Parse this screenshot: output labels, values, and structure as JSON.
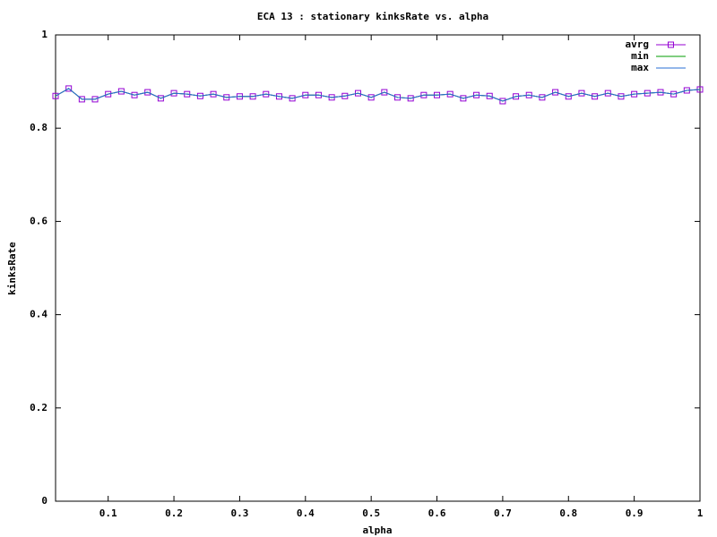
{
  "chart_data": {
    "type": "line",
    "title": "ECA 13 : stationary kinksRate vs. alpha",
    "x_label": "alpha",
    "y_label": "kinksRate",
    "x": [
      0.02,
      0.04,
      0.06,
      0.08,
      0.1,
      0.12,
      0.14,
      0.16,
      0.18,
      0.2,
      0.22,
      0.24,
      0.26,
      0.28,
      0.3,
      0.32,
      0.34,
      0.36,
      0.38,
      0.4,
      0.42,
      0.44,
      0.46,
      0.48,
      0.5,
      0.52,
      0.54,
      0.56,
      0.58,
      0.6,
      0.62,
      0.64,
      0.66,
      0.68,
      0.7,
      0.72,
      0.74,
      0.76,
      0.78,
      0.8,
      0.82,
      0.84,
      0.86,
      0.88,
      0.9,
      0.92,
      0.94,
      0.96,
      0.98,
      1
    ],
    "series": [
      {
        "name": "avrg",
        "color": "#9400d3",
        "marker": "square",
        "values": [
          0.869,
          0.885,
          0.862,
          0.862,
          0.873,
          0.879,
          0.871,
          0.877,
          0.864,
          0.875,
          0.873,
          0.869,
          0.873,
          0.866,
          0.868,
          0.868,
          0.873,
          0.868,
          0.864,
          0.871,
          0.871,
          0.866,
          0.869,
          0.875,
          0.866,
          0.877,
          0.866,
          0.864,
          0.871,
          0.871,
          0.873,
          0.864,
          0.871,
          0.869,
          0.858,
          0.868,
          0.871,
          0.866,
          0.877,
          0.868,
          0.875,
          0.868,
          0.875,
          0.868,
          0.873,
          0.875,
          0.877,
          0.873,
          0.881,
          0.883
        ]
      },
      {
        "name": "min",
        "color": "#009e00",
        "values": [
          0.869,
          0.885,
          0.862,
          0.862,
          0.873,
          0.879,
          0.871,
          0.877,
          0.864,
          0.875,
          0.873,
          0.869,
          0.873,
          0.866,
          0.868,
          0.868,
          0.873,
          0.868,
          0.864,
          0.871,
          0.871,
          0.866,
          0.869,
          0.875,
          0.866,
          0.877,
          0.866,
          0.864,
          0.871,
          0.871,
          0.873,
          0.864,
          0.871,
          0.869,
          0.858,
          0.868,
          0.871,
          0.866,
          0.877,
          0.868,
          0.875,
          0.868,
          0.875,
          0.868,
          0.873,
          0.875,
          0.877,
          0.873,
          0.881,
          0.883
        ]
      },
      {
        "name": "max",
        "color": "#2a6fd6",
        "values": [
          0.869,
          0.885,
          0.862,
          0.862,
          0.873,
          0.879,
          0.871,
          0.877,
          0.864,
          0.875,
          0.873,
          0.869,
          0.873,
          0.866,
          0.868,
          0.868,
          0.873,
          0.868,
          0.864,
          0.871,
          0.871,
          0.866,
          0.869,
          0.875,
          0.866,
          0.877,
          0.866,
          0.864,
          0.871,
          0.871,
          0.873,
          0.864,
          0.871,
          0.869,
          0.858,
          0.868,
          0.871,
          0.866,
          0.877,
          0.868,
          0.875,
          0.868,
          0.875,
          0.868,
          0.873,
          0.875,
          0.877,
          0.873,
          0.881,
          0.883
        ]
      }
    ],
    "xlim": [
      0.02,
      1
    ],
    "xticks": [
      0.1,
      0.2,
      0.3,
      0.4,
      0.5,
      0.6,
      0.7,
      0.8,
      0.9,
      1
    ],
    "ylim": [
      0,
      1
    ],
    "yticks": [
      0,
      0.2,
      0.4,
      0.6,
      0.8,
      1
    ],
    "grid": false,
    "legend": "top-right"
  }
}
